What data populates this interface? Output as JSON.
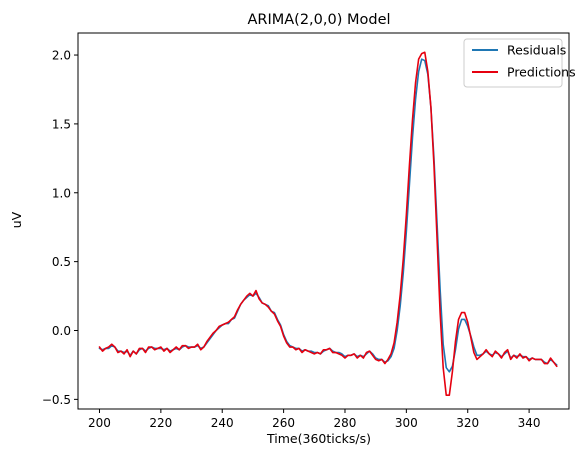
{
  "chart_data": {
    "type": "line",
    "title": "ARIMA(2,0,0) Model",
    "xlabel": "Time(360ticks/s)",
    "ylabel": "uV",
    "xlim": [
      193,
      353
    ],
    "ylim": [
      -0.57,
      2.16
    ],
    "xticks": [
      200,
      220,
      240,
      260,
      280,
      300,
      320,
      340
    ],
    "yticks": [
      -0.5,
      0.0,
      0.5,
      1.0,
      1.5,
      2.0
    ],
    "ytick_labels": [
      "−0.5",
      "0.0",
      "0.5",
      "1.0",
      "1.5",
      "2.0"
    ],
    "legend_position": "top-right",
    "grid": false,
    "x": [
      200,
      201,
      202,
      203,
      204,
      205,
      206,
      207,
      208,
      209,
      210,
      211,
      212,
      213,
      214,
      215,
      216,
      217,
      218,
      219,
      220,
      221,
      222,
      223,
      224,
      225,
      226,
      227,
      228,
      229,
      230,
      231,
      232,
      233,
      234,
      235,
      236,
      237,
      238,
      239,
      240,
      241,
      242,
      243,
      244,
      245,
      246,
      247,
      248,
      249,
      250,
      251,
      252,
      253,
      254,
      255,
      256,
      257,
      258,
      259,
      260,
      261,
      262,
      263,
      264,
      265,
      266,
      267,
      268,
      269,
      270,
      271,
      272,
      273,
      274,
      275,
      276,
      277,
      278,
      279,
      280,
      281,
      282,
      283,
      284,
      285,
      286,
      287,
      288,
      289,
      290,
      291,
      292,
      293,
      294,
      295,
      296,
      297,
      298,
      299,
      300,
      301,
      302,
      303,
      304,
      305,
      306,
      307,
      308,
      309,
      310,
      311,
      312,
      313,
      314,
      315,
      316,
      317,
      318,
      319,
      320,
      321,
      322,
      323,
      324,
      325,
      326,
      327,
      328,
      329,
      330,
      331,
      332,
      333,
      334,
      335,
      336,
      337,
      338,
      339,
      340,
      341,
      342,
      343,
      344,
      345,
      346,
      347,
      348,
      349
    ],
    "series": [
      {
        "name": "Residuals",
        "color": "#1f77b4",
        "values": [
          -0.13,
          -0.14,
          -0.13,
          -0.13,
          -0.11,
          -0.12,
          -0.15,
          -0.15,
          -0.16,
          -0.15,
          -0.18,
          -0.15,
          -0.17,
          -0.14,
          -0.13,
          -0.15,
          -0.13,
          -0.12,
          -0.13,
          -0.13,
          -0.13,
          -0.14,
          -0.13,
          -0.15,
          -0.14,
          -0.13,
          -0.14,
          -0.12,
          -0.11,
          -0.12,
          -0.12,
          -0.12,
          -0.11,
          -0.13,
          -0.12,
          -0.09,
          -0.06,
          -0.03,
          0.0,
          0.02,
          0.04,
          0.05,
          0.05,
          0.08,
          0.09,
          0.14,
          0.19,
          0.22,
          0.24,
          0.26,
          0.25,
          0.27,
          0.24,
          0.2,
          0.19,
          0.18,
          0.14,
          0.13,
          0.08,
          0.04,
          -0.03,
          -0.08,
          -0.11,
          -0.12,
          -0.13,
          -0.13,
          -0.15,
          -0.14,
          -0.15,
          -0.15,
          -0.16,
          -0.16,
          -0.17,
          -0.15,
          -0.14,
          -0.13,
          -0.15,
          -0.16,
          -0.16,
          -0.17,
          -0.19,
          -0.18,
          -0.18,
          -0.17,
          -0.19,
          -0.18,
          -0.19,
          -0.17,
          -0.15,
          -0.17,
          -0.2,
          -0.21,
          -0.21,
          -0.23,
          -0.22,
          -0.19,
          -0.13,
          0.0,
          0.18,
          0.42,
          0.72,
          1.06,
          1.4,
          1.68,
          1.88,
          1.97,
          1.96,
          1.86,
          1.62,
          1.25,
          0.78,
          0.3,
          -0.1,
          -0.27,
          -0.3,
          -0.26,
          -0.14,
          0.01,
          0.08,
          0.08,
          0.03,
          -0.04,
          -0.12,
          -0.18,
          -0.18,
          -0.17,
          -0.15,
          -0.17,
          -0.18,
          -0.16,
          -0.17,
          -0.19,
          -0.17,
          -0.15,
          -0.2,
          -0.18,
          -0.19,
          -0.18,
          -0.19,
          -0.19,
          -0.21,
          -0.2,
          -0.21,
          -0.21,
          -0.21,
          -0.23,
          -0.24,
          -0.21,
          -0.23,
          -0.25
        ]
      },
      {
        "name": "Predictions",
        "color": "#e6000f",
        "values": [
          -0.12,
          -0.15,
          -0.13,
          -0.12,
          -0.1,
          -0.12,
          -0.16,
          -0.15,
          -0.17,
          -0.14,
          -0.19,
          -0.15,
          -0.17,
          -0.13,
          -0.13,
          -0.16,
          -0.12,
          -0.12,
          -0.14,
          -0.13,
          -0.12,
          -0.15,
          -0.13,
          -0.16,
          -0.14,
          -0.12,
          -0.14,
          -0.11,
          -0.11,
          -0.13,
          -0.12,
          -0.12,
          -0.1,
          -0.14,
          -0.12,
          -0.08,
          -0.05,
          -0.02,
          0.0,
          0.03,
          0.04,
          0.05,
          0.06,
          0.08,
          0.1,
          0.15,
          0.19,
          0.22,
          0.25,
          0.27,
          0.25,
          0.29,
          0.23,
          0.2,
          0.19,
          0.17,
          0.14,
          0.12,
          0.07,
          0.03,
          -0.04,
          -0.09,
          -0.12,
          -0.12,
          -0.14,
          -0.13,
          -0.16,
          -0.14,
          -0.15,
          -0.16,
          -0.17,
          -0.16,
          -0.17,
          -0.14,
          -0.14,
          -0.13,
          -0.16,
          -0.16,
          -0.17,
          -0.18,
          -0.2,
          -0.18,
          -0.18,
          -0.17,
          -0.2,
          -0.18,
          -0.2,
          -0.16,
          -0.15,
          -0.18,
          -0.21,
          -0.22,
          -0.21,
          -0.24,
          -0.21,
          -0.17,
          -0.09,
          0.06,
          0.26,
          0.52,
          0.84,
          1.2,
          1.53,
          1.8,
          1.97,
          2.01,
          2.02,
          1.88,
          1.62,
          1.2,
          0.67,
          0.13,
          -0.27,
          -0.47,
          -0.47,
          -0.3,
          -0.08,
          0.08,
          0.13,
          0.13,
          0.06,
          -0.05,
          -0.16,
          -0.21,
          -0.19,
          -0.17,
          -0.14,
          -0.17,
          -0.19,
          -0.15,
          -0.17,
          -0.2,
          -0.16,
          -0.14,
          -0.21,
          -0.18,
          -0.2,
          -0.17,
          -0.2,
          -0.19,
          -0.22,
          -0.2,
          -0.21,
          -0.21,
          -0.21,
          -0.24,
          -0.24,
          -0.2,
          -0.23,
          -0.26
        ]
      }
    ]
  }
}
